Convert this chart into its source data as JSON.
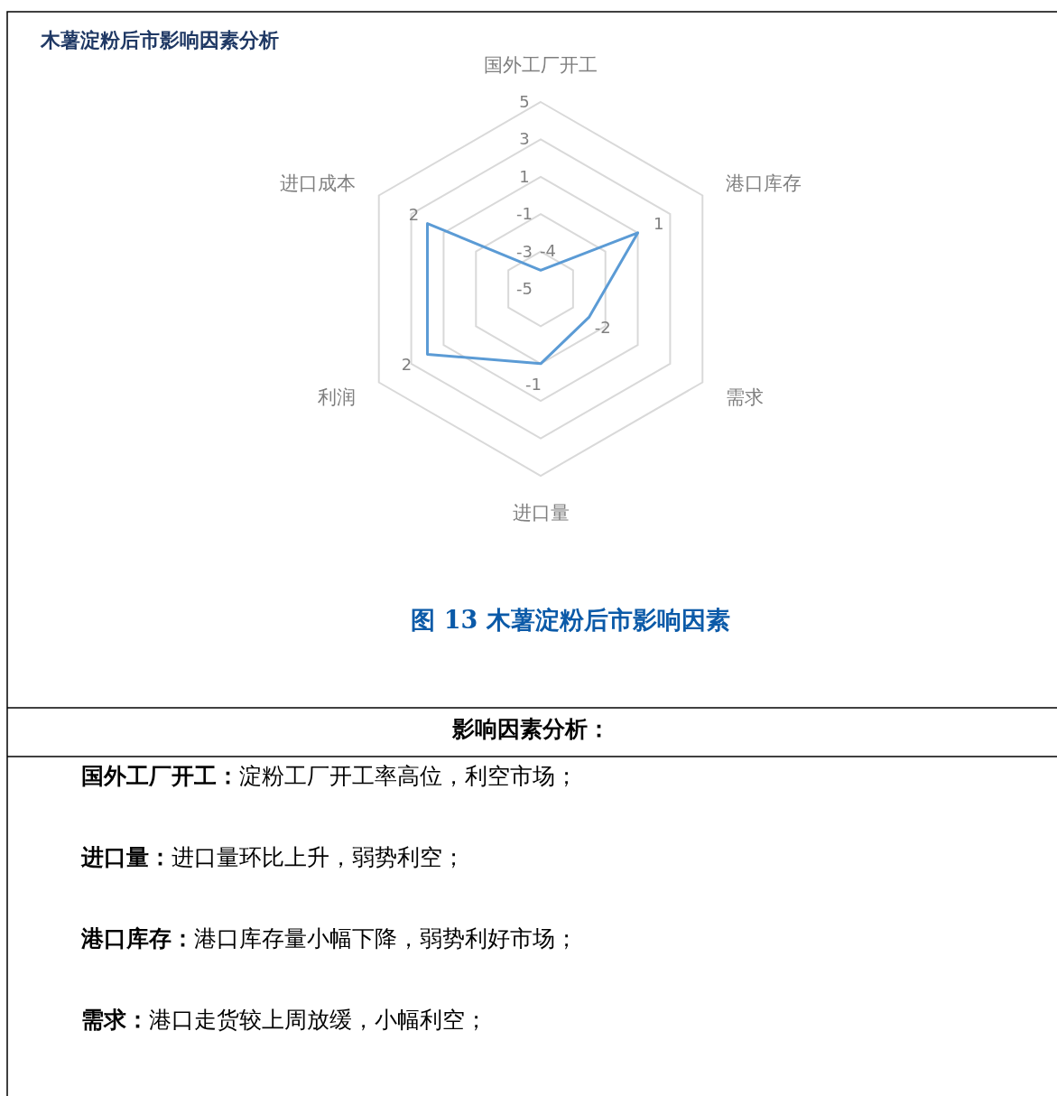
{
  "chart_data": {
    "type": "radar",
    "title": "木薯淀粉后市影响因素分析",
    "subtitle": "图 13 木薯淀粉后市影响因素",
    "categories": [
      "国外工厂开工",
      "港口库存",
      "需求",
      "进口量",
      "利润",
      "进口成本"
    ],
    "series": [
      {
        "color": "#5b9bd5",
        "values": [
          -4,
          1,
          -2,
          -1,
          2,
          2
        ]
      }
    ],
    "ylim": [
      -5,
      5
    ],
    "yticks": [
      5,
      3,
      1,
      -1,
      -3,
      -5
    ],
    "grid": true,
    "data_labels": true,
    "annotations": [
      "影响因素分析：",
      "国外工厂开工：淀粉工厂开工率高位，利空市场；",
      "进口量：进口量环比上升，弱势利空；",
      "港口库存：港口库存量小幅下降，弱势利好市场；",
      "需求：港口走货较上周放缓，小幅利空；"
    ]
  }
}
